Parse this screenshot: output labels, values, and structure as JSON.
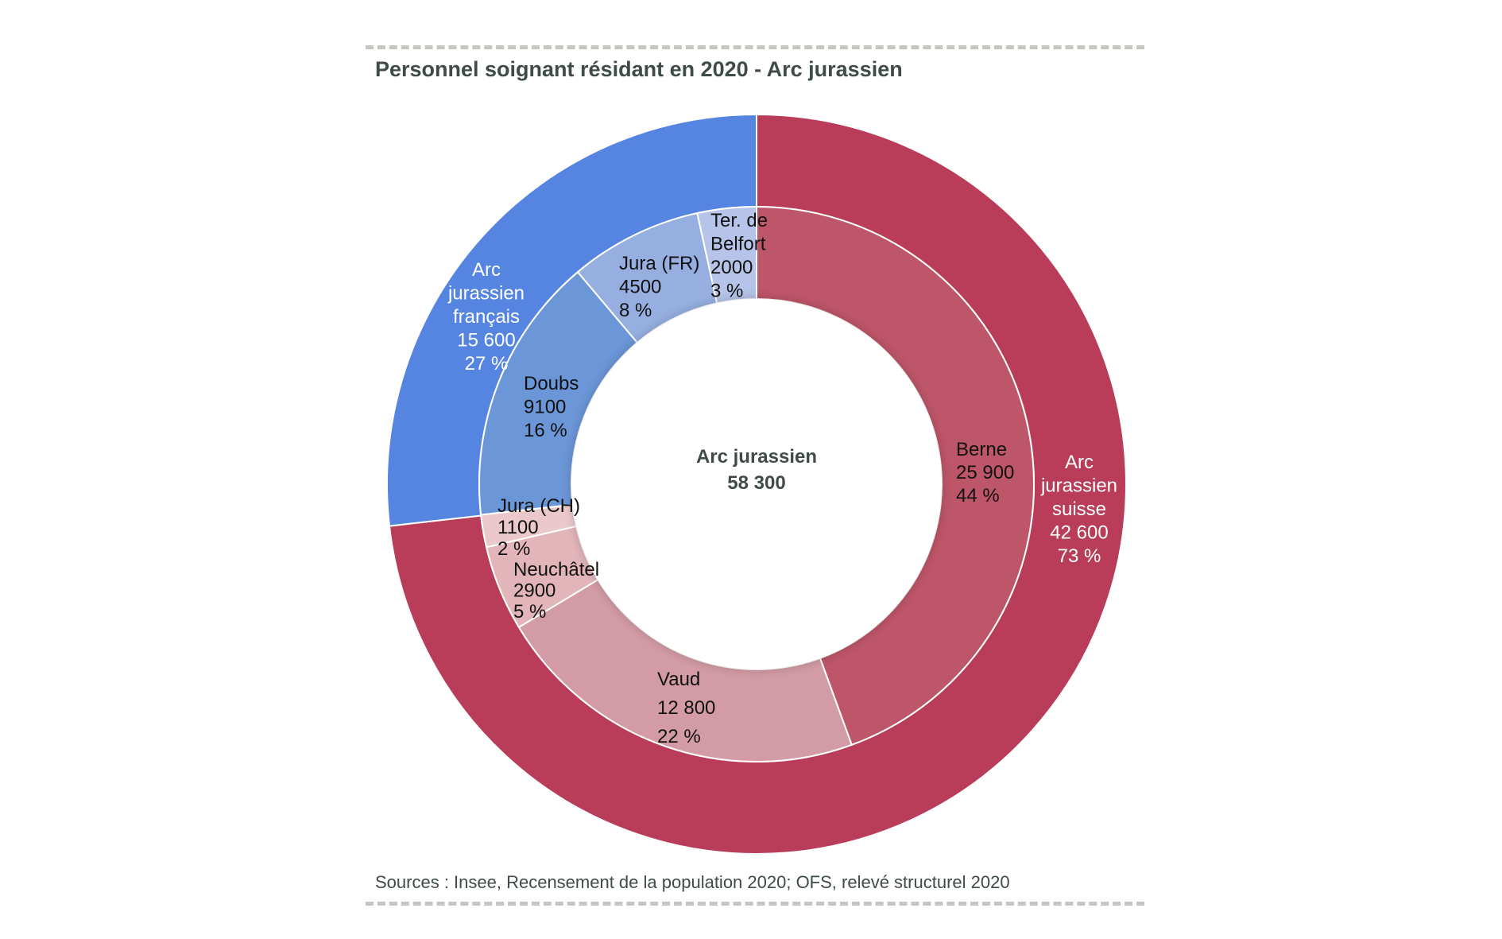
{
  "chart_data": {
    "type": "pie",
    "subtype": "nested-donut",
    "title": "Personnel soignant résidant en 2020 - Arc jurassien",
    "source": "Sources : Insee, Recensement de la population 2020; OFS, relevé structurel 2020",
    "center_label": {
      "name": "Arc jurassien",
      "value": "58 300"
    },
    "outer": [
      {
        "name": "Arc jurassien suisse",
        "lines": [
          "Arc",
          "jurassien",
          "suisse"
        ],
        "value": 42600,
        "value_label": "42 600",
        "percent_label": "73 %",
        "color": "#b93d58"
      },
      {
        "name": "Arc jurassien français",
        "lines": [
          "Arc",
          "jurassien",
          "français"
        ],
        "value": 15600,
        "value_label": "15 600",
        "percent_label": "27 %",
        "color": "#5585e0"
      }
    ],
    "inner": [
      {
        "name": "Berne",
        "lines": [
          "Berne"
        ],
        "value": 25900,
        "value_label": "25 900",
        "percent_label": "44 %",
        "color": "#bd5668"
      },
      {
        "name": "Vaud",
        "lines": [
          "Vaud"
        ],
        "value": 12800,
        "value_label": "12 800",
        "percent_label": "22 %",
        "color": "#d39ba5"
      },
      {
        "name": "Neuchâtel",
        "lines": [
          "Neuchâtel"
        ],
        "value": 2900,
        "value_label": "2900",
        "percent_label": "5 %",
        "color": "#e2b5bb"
      },
      {
        "name": "Jura (CH)",
        "lines": [
          "Jura (CH)"
        ],
        "value": 1100,
        "value_label": "1100",
        "percent_label": "2 %",
        "color": "#ebc8cc"
      },
      {
        "name": "Doubs",
        "lines": [
          "Doubs"
        ],
        "value": 9100,
        "value_label": "9100",
        "percent_label": "16 %",
        "color": "#6b96d8"
      },
      {
        "name": "Jura (FR)",
        "lines": [
          "Jura (FR)"
        ],
        "value": 4500,
        "value_label": "4500",
        "percent_label": "8 %",
        "color": "#96afe0"
      },
      {
        "name": "Ter. de Belfort",
        "lines": [
          "Ter. de",
          "Belfort"
        ],
        "value": 2000,
        "value_label": "2000",
        "percent_label": "3 %",
        "color": "#b6c4e9"
      }
    ]
  }
}
